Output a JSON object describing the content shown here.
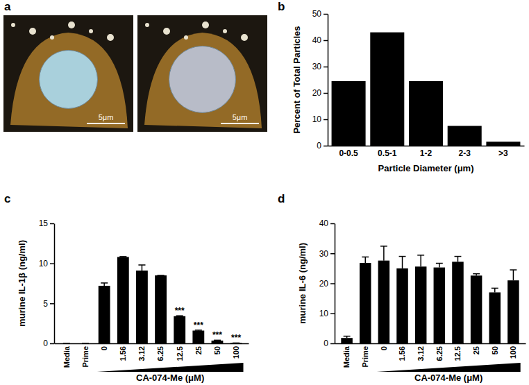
{
  "chart_data": [
    {
      "type": "image",
      "panel_label": "a",
      "scale_bar_labels": [
        "5μm",
        "5μm"
      ]
    },
    {
      "type": "bar",
      "panel_label": "b",
      "categories": [
        "0-0.5",
        "0.5-1",
        "1-2",
        "2-3",
        ">3"
      ],
      "values": [
        24.5,
        43,
        24.5,
        7.5,
        1.5
      ],
      "color": "#000000",
      "x_label": "Particle Diameter (μm)",
      "y_label": "Percent of Total Particles",
      "ylim": [
        0,
        50
      ],
      "yticks": [
        0,
        10,
        20,
        30,
        40,
        50
      ]
    },
    {
      "type": "bar",
      "panel_label": "c",
      "categories": [
        "Media",
        "Prime",
        "0",
        "1.56",
        "3.12",
        "6.25",
        "12.5",
        "25",
        "50",
        "100"
      ],
      "values": [
        0,
        0,
        7.2,
        10.8,
        9.1,
        8.5,
        3.4,
        1.6,
        0.35,
        0.05
      ],
      "errors": [
        0,
        0,
        0.35,
        0.05,
        0.7,
        0,
        0.05,
        0.05,
        0.05,
        0
      ],
      "color": "#000000",
      "x_label": "CA-074-Me (μM)",
      "y_label": "murine IL-1β (ng/ml)",
      "ylim": [
        0,
        15
      ],
      "yticks": [
        0,
        5,
        10,
        15
      ],
      "annotations": [
        {
          "category": "12.5",
          "text": "***"
        },
        {
          "category": "25",
          "text": "***"
        },
        {
          "category": "50",
          "text": "***"
        },
        {
          "category": "100",
          "text": "***"
        }
      ]
    },
    {
      "type": "bar",
      "panel_label": "d",
      "categories": [
        "Media",
        "Prime",
        "0",
        "1.56",
        "3.12",
        "6.25",
        "12.5",
        "25",
        "50",
        "100"
      ],
      "values": [
        1.8,
        26.8,
        27.6,
        25,
        25.6,
        25.3,
        27.2,
        22.6,
        17,
        21
      ],
      "errors": [
        0.6,
        2,
        4.8,
        4,
        3.8,
        1.4,
        1.8,
        0.6,
        1.4,
        3.5
      ],
      "color": "#000000",
      "x_label": "CA-074-Me (μM)",
      "y_label": "murine IL-6 (ng/ml)",
      "ylim": [
        0,
        40
      ],
      "yticks": [
        0,
        10,
        20,
        30,
        40
      ]
    }
  ]
}
